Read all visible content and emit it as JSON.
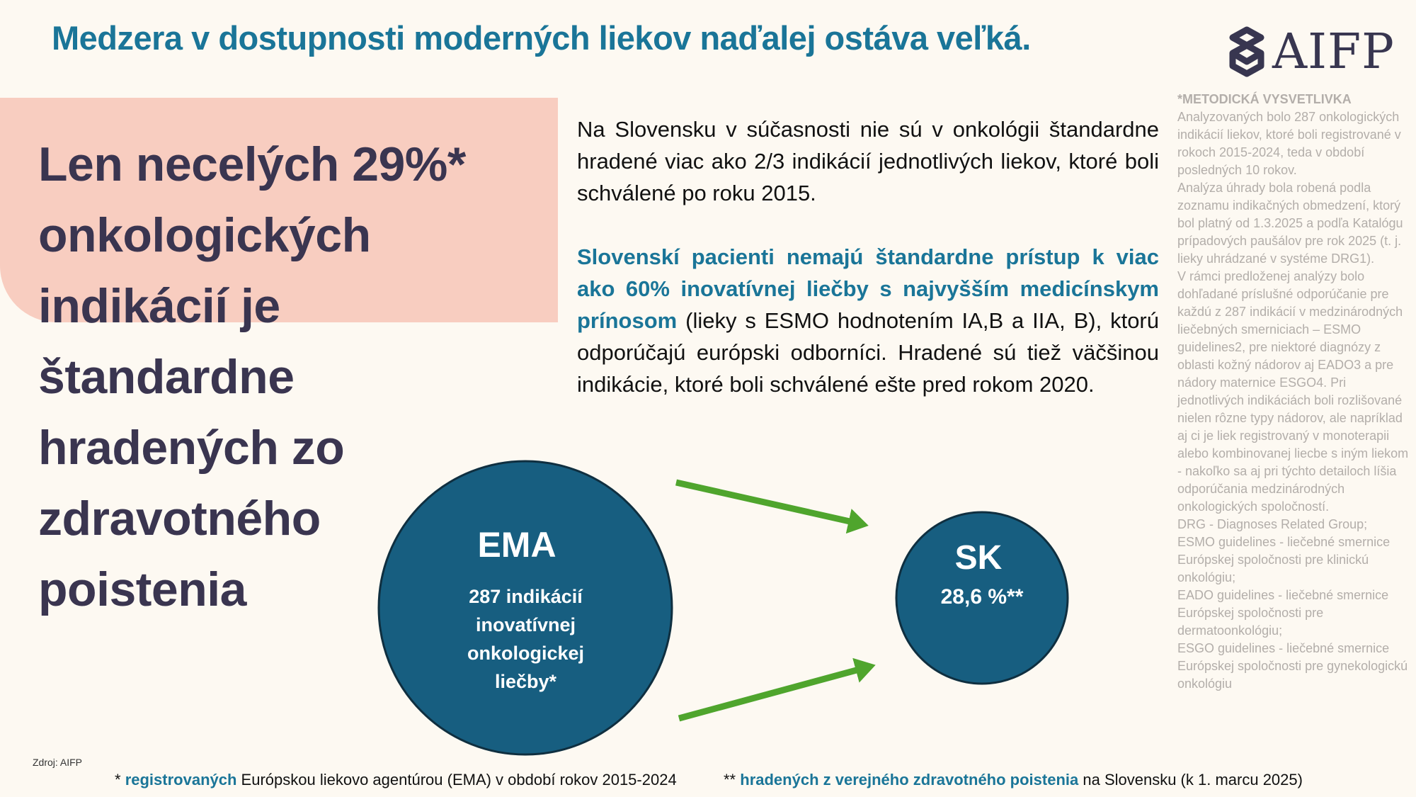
{
  "title": "Medzera v dostupnosti moderných liekov naďalej ostáva veľká.",
  "logo": {
    "text": "AIFP",
    "icon": "aifp-helix-logo-icon"
  },
  "headline": [
    "Len necelých 29%*",
    "onkologických",
    "indikácií je",
    "štandardne",
    "hradených zo",
    "zdravotného",
    "poistenia"
  ],
  "paragraph1": "Na Slovensku v súčasnosti nie sú v onkológii štandardne hradené viac ako 2/3 indikácií jednotlivých liekov, ktoré boli schválené po roku 2015.",
  "paragraph2": {
    "highlight": "Slovenskí pacienti nemajú štandardne prístup k viac ako 60% inovatívnej liečby s najvyšším medicínskym prínosom",
    "rest": " (lieky s ESMO hodnotením IA,B a IIA, B), ktorú odporúčajú európski odborníci. Hradené sú  tiež väčšinou indikácie, ktoré boli schválené ešte pred rokom 2020."
  },
  "methodology": {
    "heading": "*METODICKÁ VYSVETLIVKA",
    "paragraphs": [
      "Analyzovaných bolo 287 onkologických indikácií liekov, ktoré boli registrované v rokoch 2015-2024, teda v období posledných 10 rokov.",
      "Analýza úhrady bola robená podla zoznamu indikačných obmedzení, ktorý bol platný od 1.3.2025 a podľa Katalógu prípadových paušálov pre rok 2025 (t. j. lieky uhrádzané v systéme DRG1).",
      "V rámci predloženej analýzy bolo dohľadané príslušné odporúčanie pre každú z 287 indikácií v medzinárodných liečebných smerniciach – ESMO guidelines2, pre niektoré diagnózy z oblasti kožný nádorov aj EADO3 a pre nádory maternice ESGO4. Pri jednotlivých indikáciách boli rozlišované nielen rôzne typy nádorov, ale napríklad aj ci je liek registrovaný v monoterapii alebo kombinovanej liecbe s iným liekom - nakoľko sa aj pri týchto detailoch líšia odporúčania medzinárodných onkologických spoločností.",
      "DRG - Diagnoses Related Group;",
      "ESMO guidelines - liečebné smernice Európskej spoločnosti pre klinickú onkológiu;",
      "EADO guidelines - liečebné smernice Európskej spoločnosti pre dermatoonkológiu;",
      "ESGO guidelines - liečebné smernice Európskej spoločnosti pre gynekologickú onkológiu"
    ]
  },
  "ema_circle": {
    "label": "EMA",
    "lines": [
      "287 indikácií",
      "inovatívnej",
      "onkologickej",
      "liečby*"
    ]
  },
  "sk_circle": {
    "label": "SK",
    "value": "28,6 %**"
  },
  "colors": {
    "title": "#1a7598",
    "circle": "#175e80",
    "arrow": "#4fa52d",
    "pink": "#f8cdc0",
    "headline": "#3a3550"
  },
  "source": "Zdroj: AIFP",
  "footnote1": {
    "prefix": "* ",
    "highlight": "registrovaných",
    "rest": " Európskou liekovo agentúrou (EMA) v období rokov 2015-2024"
  },
  "footnote2": {
    "prefix": "** ",
    "highlight": "hradených z verejného zdravotného poistenia",
    "rest": " na Slovensku (k 1. marcu 2025)"
  }
}
